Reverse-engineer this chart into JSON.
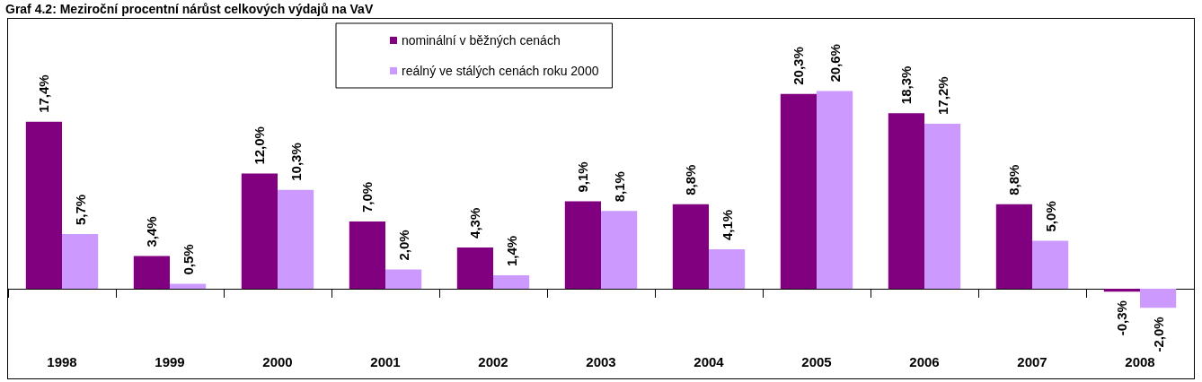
{
  "chart_data": {
    "type": "bar",
    "title": "Graf 4.2: Meziroční procentní nárůst celkových výdajů na VaV",
    "categories": [
      "1998",
      "1999",
      "2000",
      "2001",
      "2002",
      "2003",
      "2004",
      "2005",
      "2006",
      "2007",
      "2008"
    ],
    "series": [
      {
        "name": "nominální v běžných cenách",
        "color": "#800080",
        "values": [
          17.4,
          3.4,
          12.0,
          7.0,
          4.3,
          9.1,
          8.8,
          20.3,
          18.3,
          8.8,
          -0.3
        ],
        "value_labels": [
          "17,4%",
          "3,4%",
          "12,0%",
          "7,0%",
          "4,3%",
          "9,1%",
          "8,8%",
          "20,3%",
          "18,3%",
          "8,8%",
          "-0,3%"
        ]
      },
      {
        "name": "reálný ve stálých cenách roku 2000",
        "color": "#cc99ff",
        "values": [
          5.7,
          0.5,
          10.3,
          2.0,
          1.4,
          8.1,
          4.1,
          20.6,
          17.2,
          5.0,
          -2.0
        ],
        "value_labels": [
          "5,7%",
          "0,5%",
          "10,3%",
          "2,0%",
          "1,4%",
          "8,1%",
          "4,1%",
          "20,6%",
          "17,2%",
          "5,0%",
          "-2,0%"
        ]
      }
    ],
    "legend": "top"
  }
}
